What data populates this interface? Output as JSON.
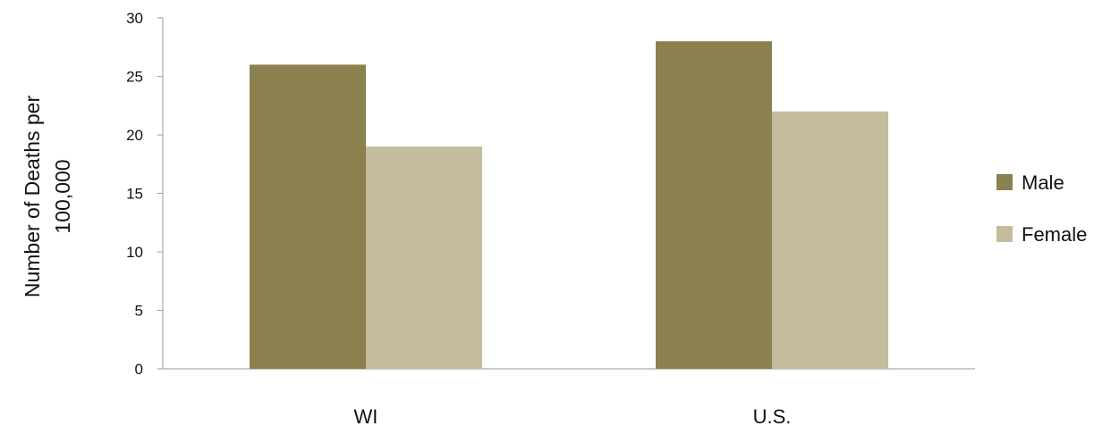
{
  "chart_data": {
    "type": "bar",
    "categories": [
      "WI",
      "U.S."
    ],
    "series": [
      {
        "name": "Male",
        "values": [
          26,
          28
        ],
        "color": "#8b814e"
      },
      {
        "name": "Female",
        "values": [
          19,
          22
        ],
        "color": "#c4bc9c"
      }
    ],
    "ylabel_lines": [
      "Number of Deaths per",
      "100,000"
    ],
    "ylim": [
      0,
      30
    ],
    "yticks": [
      0,
      5,
      10,
      15,
      20,
      25,
      30
    ],
    "grid": false,
    "legend_position": "right"
  }
}
